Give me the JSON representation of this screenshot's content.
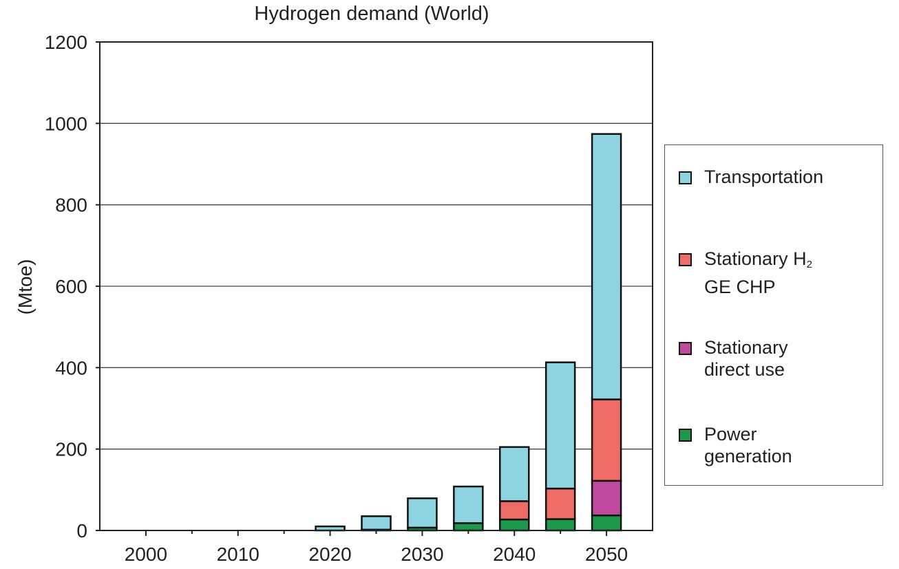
{
  "chart_data": {
    "type": "bar",
    "stacked": true,
    "title": "Hydrogen demand (World)",
    "xlabel": "",
    "ylabel": "(Mtoe)",
    "ylim": [
      0,
      1200
    ],
    "yticks": [
      0,
      200,
      400,
      600,
      800,
      1000,
      1200
    ],
    "xticks": [
      2000,
      2010,
      2020,
      2030,
      2040,
      2050
    ],
    "xlim": [
      1995,
      2055
    ],
    "grid": "horizontal",
    "legend_position": "right",
    "x": [
      2020,
      2025,
      2030,
      2035,
      2040,
      2045,
      2050
    ],
    "series": [
      {
        "name": "Power generation",
        "color": "#1a9a4a",
        "values": [
          0,
          2,
          7,
          18,
          27,
          28,
          37
        ]
      },
      {
        "name": "Stationary direct use",
        "color": "#c04a9e",
        "values": [
          0,
          0,
          0,
          0,
          0,
          0,
          85
        ]
      },
      {
        "name": "Stationary H2 GE CHP",
        "color": "#ee6b66",
        "values": [
          0,
          0,
          0,
          0,
          45,
          75,
          200
        ]
      },
      {
        "name": "Transportation",
        "color": "#8ed3e0",
        "values": [
          10,
          33,
          72,
          90,
          133,
          310,
          652
        ]
      }
    ]
  },
  "legend": {
    "transportation": "Transportation",
    "chp_line1": "Stationary H",
    "chp_sub": "2",
    "chp_line2": "GE CHP",
    "direct_line1": "Stationary",
    "direct_line2": "direct use",
    "power_line1": "Power",
    "power_line2": "generation"
  }
}
